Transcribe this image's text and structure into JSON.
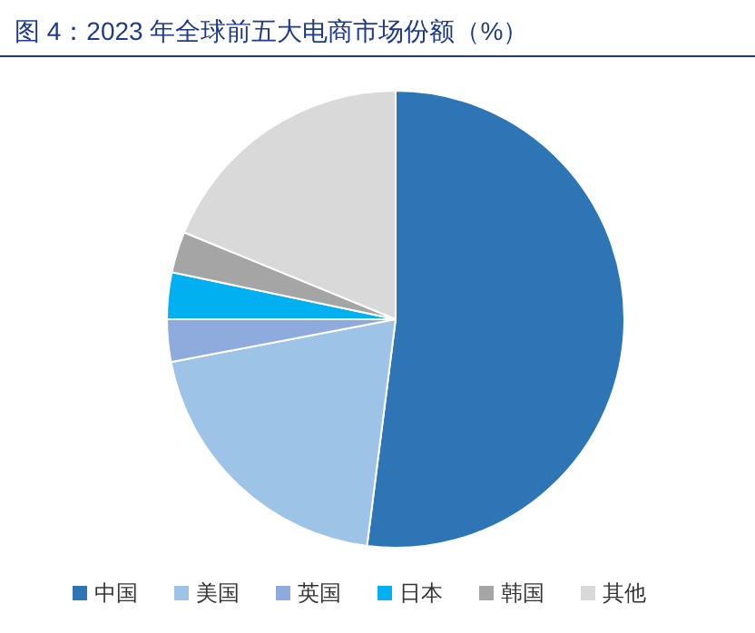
{
  "chart_data": {
    "type": "pie",
    "title": "图 4：2023 年全球前五大电商市场份额（%）",
    "categories": [
      "中国",
      "美国",
      "英国",
      "日本",
      "韩国",
      "其他"
    ],
    "values": [
      52,
      20,
      3,
      3.3,
      2.9,
      18.8
    ],
    "colors": [
      "#2e75b6",
      "#9dc3e6",
      "#8faadc",
      "#00b0f0",
      "#a5a5a5",
      "#d9d9d9"
    ],
    "legend": "bottom"
  }
}
